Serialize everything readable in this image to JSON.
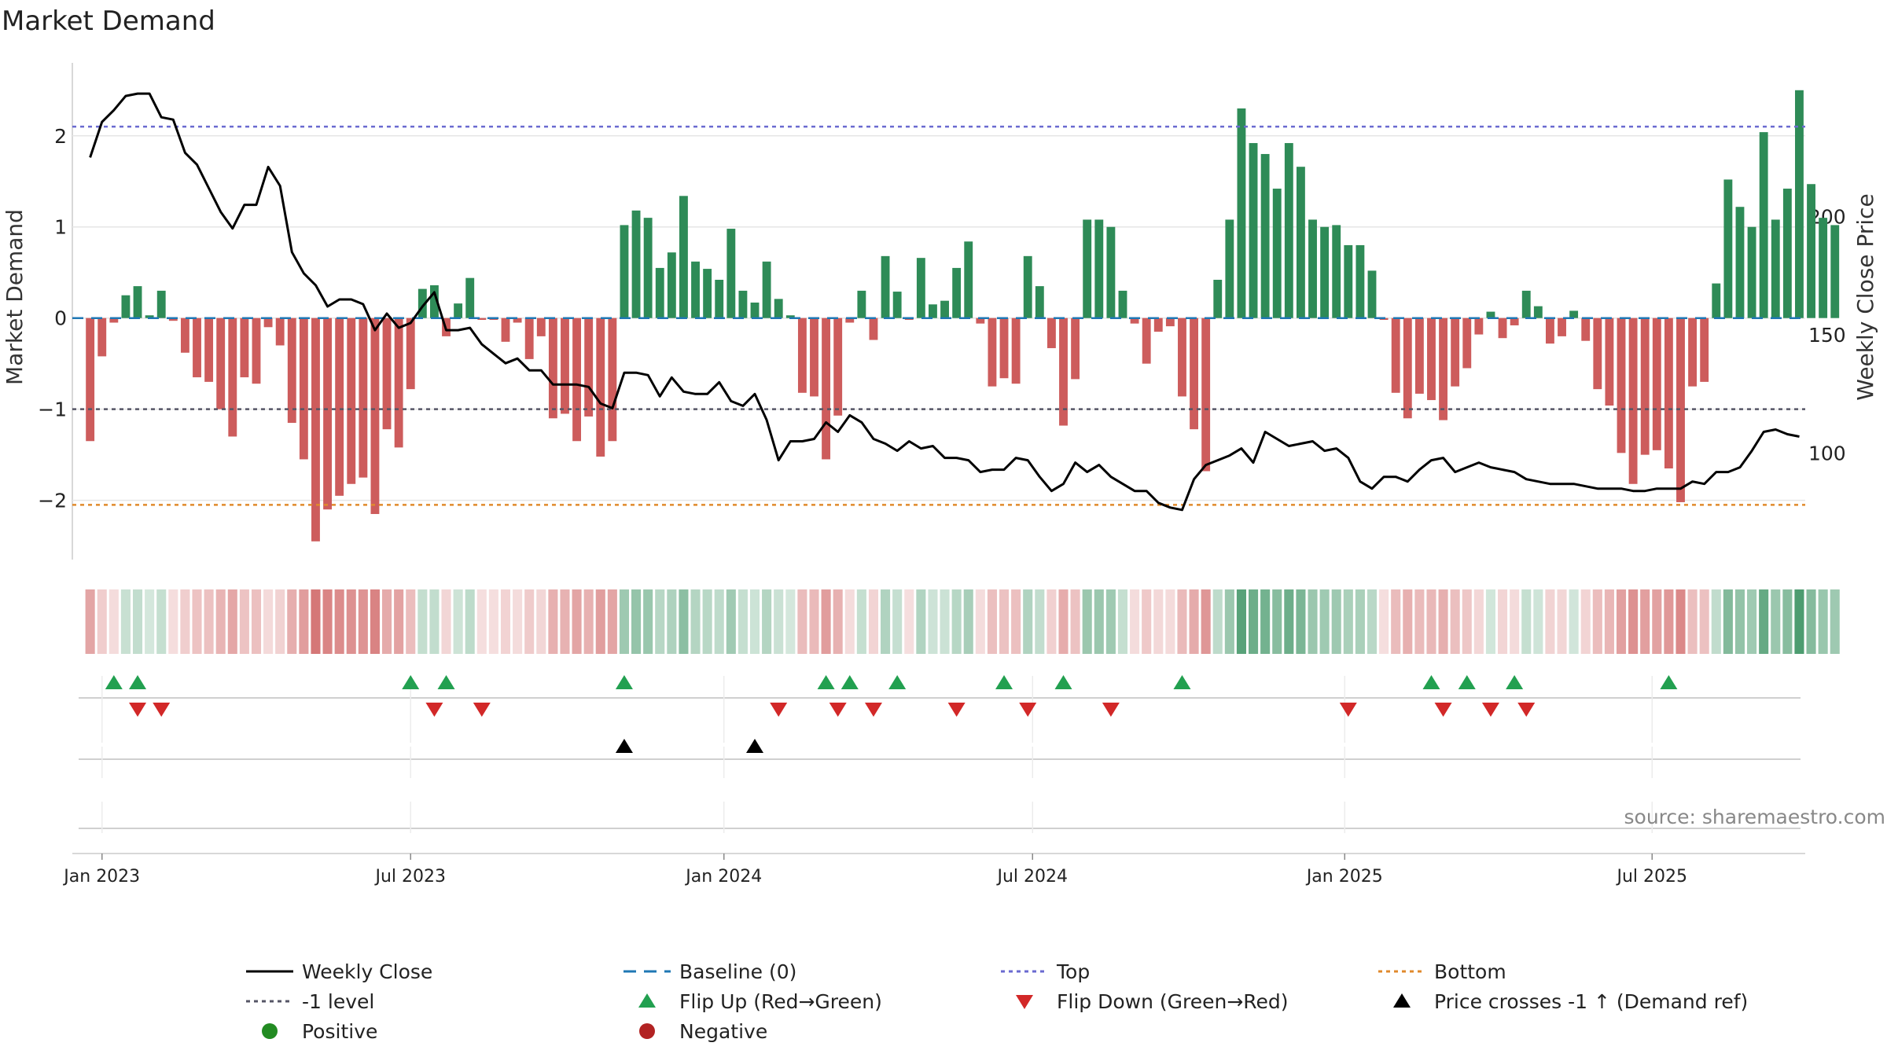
{
  "colors": {
    "positive": "#2e8b57",
    "negative": "#cd5c5c",
    "line": "#000000",
    "top": "#6a6ad0",
    "minus_one": "#555566",
    "bottom": "#e08a2c",
    "baseline": "#1f77b4",
    "flip_up": "#22a050",
    "flip_down": "#d22828",
    "cross": "#000000",
    "legend_positive": "#228b22",
    "legend_negative": "#b22222",
    "grid": "#e6e6e6",
    "text": "#222222",
    "source": "#888888"
  },
  "chart_data": {
    "type": "bar",
    "title": "Market Demand",
    "ylabel": "Market Demand",
    "y2label": "Weekly Close Price",
    "ylim": [
      -2.65,
      2.8
    ],
    "y2lim": [
      55,
      265
    ],
    "yticks": [
      2,
      1,
      0,
      -1,
      -2
    ],
    "ytick_labels": [
      "2",
      "1",
      "0",
      "−1",
      "−2"
    ],
    "y2ticks": [
      200,
      150,
      100
    ],
    "y2tick_labels": [
      "200",
      "150",
      "100"
    ],
    "x_week_start": -1.5,
    "x_week_end": 144.5,
    "x_ticks": [
      {
        "label": "Jan 2023",
        "week": 1
      },
      {
        "label": "Jul 2023",
        "week": 27
      },
      {
        "label": "Jan 2024",
        "week": 53.4
      },
      {
        "label": "Jul 2024",
        "week": 79.4
      },
      {
        "label": "Jan 2025",
        "week": 105.7
      },
      {
        "label": "Jul 2025",
        "week": 131.6
      }
    ],
    "levels": {
      "top": 2.1,
      "minus_one": -1.0,
      "bottom": -2.05,
      "baseline": 0
    },
    "demand": [
      -1.35,
      -0.42,
      -0.05,
      0.25,
      0.35,
      0.03,
      0.3,
      -0.03,
      -0.38,
      -0.65,
      -0.7,
      -1.0,
      -1.3,
      -0.65,
      -0.72,
      -0.1,
      -0.3,
      -1.15,
      -1.55,
      -2.45,
      -2.1,
      -1.95,
      -1.82,
      -1.75,
      -2.15,
      -1.22,
      -1.42,
      -0.78,
      0.32,
      0.36,
      -0.2,
      0.16,
      0.44,
      -0.02,
      -0.02,
      -0.26,
      -0.05,
      -0.45,
      -0.2,
      -1.1,
      -1.05,
      -1.35,
      -1.08,
      -1.52,
      -1.35,
      1.02,
      1.18,
      1.1,
      0.55,
      0.72,
      1.34,
      0.62,
      0.54,
      0.42,
      0.98,
      0.3,
      0.17,
      0.62,
      0.21,
      0.03,
      -0.82,
      -0.86,
      -1.55,
      -1.07,
      -0.05,
      0.3,
      -0.24,
      0.68,
      0.29,
      -0.02,
      0.66,
      0.15,
      0.19,
      0.55,
      0.84,
      -0.06,
      -0.75,
      -0.66,
      -0.72,
      0.68,
      0.35,
      -0.33,
      -1.18,
      -0.67,
      1.08,
      1.08,
      1.0,
      0.3,
      -0.06,
      -0.5,
      -0.15,
      -0.09,
      -0.86,
      -1.22,
      -1.68,
      0.42,
      1.08,
      2.3,
      1.92,
      1.8,
      1.42,
      1.92,
      1.66,
      1.08,
      1.0,
      1.02,
      0.8,
      0.8,
      0.52,
      -0.02,
      -0.82,
      -1.1,
      -0.83,
      -0.9,
      -1.12,
      -0.75,
      -0.55,
      -0.18,
      0.07,
      -0.22,
      -0.08,
      0.3,
      0.13,
      -0.28,
      -0.2,
      0.08,
      -0.25,
      -0.78,
      -0.96,
      -1.48,
      -1.82,
      -1.5,
      -1.45,
      -1.65,
      -2.02,
      -0.75,
      -0.7,
      0.38,
      1.52,
      1.22,
      1.0,
      2.04,
      1.08,
      1.42,
      2.5,
      1.47,
      1.1,
      1.02
    ],
    "close": [
      225,
      240,
      245,
      251,
      252,
      252,
      242,
      241,
      227,
      222,
      212,
      202,
      195,
      205,
      205,
      221,
      213,
      185,
      176,
      171,
      162,
      165,
      165,
      163,
      152,
      159,
      153,
      155,
      162,
      168,
      152,
      152,
      153,
      146,
      142,
      138,
      140,
      135,
      135,
      129,
      129,
      129,
      128,
      121,
      119,
      134,
      134,
      133,
      124,
      132,
      126,
      125,
      125,
      130,
      122,
      120,
      125,
      114,
      97,
      105,
      105,
      106,
      113,
      109,
      116,
      113,
      106,
      104,
      101,
      105,
      102,
      103,
      98,
      98,
      97,
      92,
      93,
      93,
      98,
      97,
      90,
      84,
      87,
      96,
      92,
      95,
      90,
      87,
      84,
      84,
      79,
      77,
      76,
      89,
      95,
      97,
      99,
      102,
      96,
      109,
      106,
      103,
      104,
      105,
      101,
      102,
      98,
      88,
      85,
      90,
      90,
      88,
      93,
      97,
      98,
      92,
      94,
      96,
      94,
      93,
      92,
      89,
      88,
      87,
      87,
      87,
      86,
      85,
      85,
      85,
      84,
      84,
      85,
      85,
      85,
      88,
      87,
      92,
      92,
      94,
      101,
      109,
      110,
      108,
      107
    ]
  },
  "markers": {
    "flip_up_weeks": [
      2,
      4,
      27,
      30,
      45,
      62,
      64,
      68,
      77,
      82,
      92,
      113,
      116,
      120,
      133
    ],
    "flip_down_weeks": [
      4,
      6,
      29,
      33,
      58,
      63,
      66,
      73,
      79,
      86,
      106,
      114,
      118,
      121
    ],
    "cross_weeks": [
      45,
      56
    ]
  },
  "source": "source: sharemaestro.com",
  "legend": {
    "weekly_close": "Weekly Close",
    "baseline": "Baseline (0)",
    "top": "Top",
    "bottom": "Bottom",
    "minus_one": "-1 level",
    "flip_up": "Flip Up (Red→Green)",
    "flip_down": "Flip Down (Green→Red)",
    "cross": "Price crosses -1 ↑ (Demand ref)",
    "positive": "Positive",
    "negative": "Negative"
  }
}
